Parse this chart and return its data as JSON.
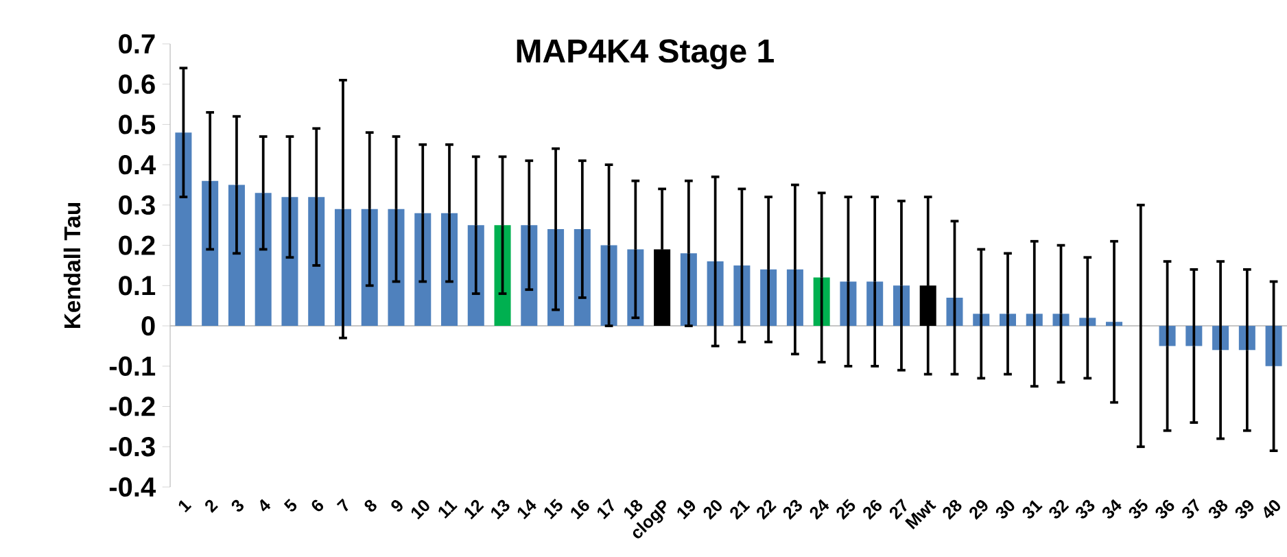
{
  "chart_data": {
    "type": "bar",
    "title": "MAP4K4 Stage 1",
    "ylabel": "Kendall Tau",
    "categories": [
      "1",
      "2",
      "3",
      "4",
      "5",
      "6",
      "7",
      "8",
      "9",
      "10",
      "11",
      "12",
      "13",
      "14",
      "15",
      "16",
      "17",
      "18",
      "clogP",
      "19",
      "20",
      "21",
      "22",
      "23",
      "24",
      "25",
      "26",
      "27",
      "Mwt",
      "28",
      "29",
      "30",
      "31",
      "32",
      "33",
      "34",
      "35",
      "36",
      "37",
      "38",
      "39",
      "40"
    ],
    "values": [
      0.48,
      0.36,
      0.35,
      0.33,
      0.32,
      0.32,
      0.29,
      0.29,
      0.29,
      0.28,
      0.28,
      0.25,
      0.25,
      0.25,
      0.24,
      0.24,
      0.2,
      0.19,
      0.19,
      0.18,
      0.16,
      0.15,
      0.14,
      0.14,
      0.12,
      0.11,
      0.11,
      0.1,
      0.1,
      0.07,
      0.03,
      0.03,
      0.03,
      0.03,
      0.02,
      0.01,
      0,
      -0.05,
      -0.05,
      -0.06,
      -0.06,
      -0.1
    ],
    "errors": [
      0.16,
      0.17,
      0.17,
      0.14,
      0.15,
      0.17,
      0.32,
      0.19,
      0.18,
      0.17,
      0.17,
      0.17,
      0.17,
      0.16,
      0.2,
      0.17,
      0.2,
      0.17,
      0.15,
      0.18,
      0.21,
      0.19,
      0.18,
      0.21,
      0.21,
      0.21,
      0.21,
      0.21,
      0.22,
      0.19,
      0.16,
      0.15,
      0.18,
      0.17,
      0.15,
      0.2,
      0.3,
      0.21,
      0.19,
      0.22,
      0.2,
      0.21
    ],
    "colors": [
      "#4f81bd",
      "#4f81bd",
      "#4f81bd",
      "#4f81bd",
      "#4f81bd",
      "#4f81bd",
      "#4f81bd",
      "#4f81bd",
      "#4f81bd",
      "#4f81bd",
      "#4f81bd",
      "#4f81bd",
      "#00b050",
      "#4f81bd",
      "#4f81bd",
      "#4f81bd",
      "#4f81bd",
      "#4f81bd",
      "#000000",
      "#4f81bd",
      "#4f81bd",
      "#4f81bd",
      "#4f81bd",
      "#4f81bd",
      "#00b050",
      "#4f81bd",
      "#4f81bd",
      "#4f81bd",
      "#000000",
      "#4f81bd",
      "#4f81bd",
      "#4f81bd",
      "#4f81bd",
      "#4f81bd",
      "#4f81bd",
      "#4f81bd",
      "#4f81bd",
      "#4f81bd",
      "#4f81bd",
      "#4f81bd",
      "#4f81bd",
      "#4f81bd"
    ],
    "ylim": [
      -0.4,
      0.7
    ],
    "yticks": [
      -0.4,
      -0.3,
      -0.2,
      -0.1,
      0,
      0.1,
      0.2,
      0.3,
      0.4,
      0.5,
      0.6,
      0.7
    ]
  }
}
